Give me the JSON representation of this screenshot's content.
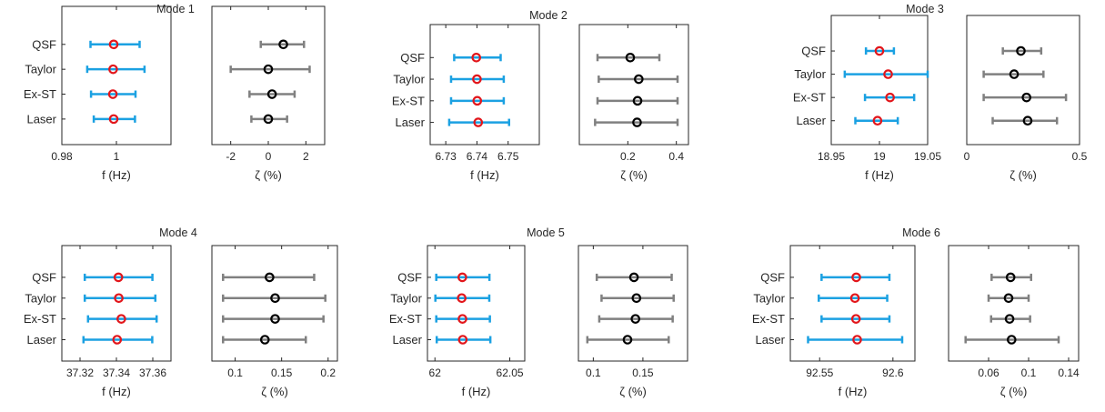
{
  "colors": {
    "freq_bar": "#1ba1e2",
    "freq_marker": "#e2161b",
    "damp_bar": "#808080",
    "damp_marker": "#000000",
    "axes": "#262626"
  },
  "methods": [
    "QSF",
    "Taylor",
    "Ex-ST",
    "Laser"
  ],
  "chart_data": [
    {
      "type": "errorbar",
      "title": "Mode 1",
      "freq": {
        "xlabel": "f (Hz)",
        "xlim": [
          0.98,
          1.02
        ],
        "ticks": [
          0.98,
          1
        ],
        "tick_labels": [
          "0.98",
          "1"
        ],
        "points": [
          {
            "method": "QSF",
            "value": 0.999,
            "lo": 0.9905,
            "hi": 1.0085
          },
          {
            "method": "Taylor",
            "value": 0.9988,
            "lo": 0.9893,
            "hi": 1.0103
          },
          {
            "method": "Ex-ST",
            "value": 0.9987,
            "lo": 0.9907,
            "hi": 1.007
          },
          {
            "method": "Laser",
            "value": 0.999,
            "lo": 0.9917,
            "hi": 1.0068
          }
        ]
      },
      "damp": {
        "xlabel": "ζ (%)",
        "xlim": [
          -3,
          3
        ],
        "ticks": [
          -2,
          0,
          2
        ],
        "tick_labels": [
          "-2",
          "0",
          "2"
        ],
        "points": [
          {
            "method": "QSF",
            "value": 0.8,
            "lo": -0.4,
            "hi": 1.9
          },
          {
            "method": "Taylor",
            "value": 0.0,
            "lo": -2.0,
            "hi": 2.2
          },
          {
            "method": "Ex-ST",
            "value": 0.2,
            "lo": -1.0,
            "hi": 1.4
          },
          {
            "method": "Laser",
            "value": 0.0,
            "lo": -0.9,
            "hi": 1.0
          }
        ]
      }
    },
    {
      "type": "errorbar",
      "title": "Mode 2",
      "freq": {
        "xlabel": "f (Hz)",
        "xlim": [
          6.725,
          6.76
        ],
        "ticks": [
          6.73,
          6.74,
          6.75
        ],
        "tick_labels": [
          "6.73",
          "6.74",
          "6.75"
        ],
        "points": [
          {
            "method": "QSF",
            "value": 6.7398,
            "lo": 6.7327,
            "hi": 6.7476
          },
          {
            "method": "Taylor",
            "value": 6.74,
            "lo": 6.7317,
            "hi": 6.7486
          },
          {
            "method": "Ex-ST",
            "value": 6.7401,
            "lo": 6.7317,
            "hi": 6.7486
          },
          {
            "method": "Laser",
            "value": 6.7404,
            "lo": 6.7311,
            "hi": 6.7503
          }
        ]
      },
      "damp": {
        "xlabel": "ζ (%)",
        "xlim": [
          0,
          0.45
        ],
        "ticks": [
          0.2,
          0.4
        ],
        "tick_labels": [
          "0.2",
          "0.4"
        ],
        "points": [
          {
            "method": "QSF",
            "value": 0.21,
            "lo": 0.075,
            "hi": 0.33
          },
          {
            "method": "Taylor",
            "value": 0.245,
            "lo": 0.08,
            "hi": 0.405
          },
          {
            "method": "Ex-ST",
            "value": 0.24,
            "lo": 0.075,
            "hi": 0.405
          },
          {
            "method": "Laser",
            "value": 0.238,
            "lo": 0.065,
            "hi": 0.405
          }
        ]
      }
    },
    {
      "type": "errorbar",
      "title": "Mode 3",
      "freq": {
        "xlabel": "f (Hz)",
        "xlim": [
          18.95,
          19.05
        ],
        "ticks": [
          18.95,
          19,
          19.05
        ],
        "tick_labels": [
          "18.95",
          "19",
          "19.05"
        ],
        "points": [
          {
            "method": "QSF",
            "value": 19.0,
            "lo": 18.986,
            "hi": 19.015
          },
          {
            "method": "Taylor",
            "value": 19.009,
            "lo": 18.964,
            "hi": 19.05
          },
          {
            "method": "Ex-ST",
            "value": 19.011,
            "lo": 18.985,
            "hi": 19.036
          },
          {
            "method": "Laser",
            "value": 18.998,
            "lo": 18.975,
            "hi": 19.019
          }
        ]
      },
      "damp": {
        "xlabel": "ζ (%)",
        "xlim": [
          0,
          0.5
        ],
        "ticks": [
          0,
          0.5
        ],
        "tick_labels": [
          "0",
          "0.5"
        ],
        "points": [
          {
            "method": "QSF",
            "value": 0.24,
            "lo": 0.16,
            "hi": 0.33
          },
          {
            "method": "Taylor",
            "value": 0.21,
            "lo": 0.075,
            "hi": 0.34
          },
          {
            "method": "Ex-ST",
            "value": 0.265,
            "lo": 0.075,
            "hi": 0.44
          },
          {
            "method": "Laser",
            "value": 0.27,
            "lo": 0.115,
            "hi": 0.4
          }
        ]
      }
    },
    {
      "type": "errorbar",
      "title": "Mode 4",
      "freq": {
        "xlabel": "f (Hz)",
        "xlim": [
          37.31,
          37.37
        ],
        "ticks": [
          37.32,
          37.34,
          37.36
        ],
        "tick_labels": [
          "37.32",
          "37.34",
          "37.36"
        ],
        "points": [
          {
            "method": "QSF",
            "value": 37.3411,
            "lo": 37.3226,
            "hi": 37.3598
          },
          {
            "method": "Taylor",
            "value": 37.3413,
            "lo": 37.3226,
            "hi": 37.3614
          },
          {
            "method": "Ex-ST",
            "value": 37.3427,
            "lo": 37.3244,
            "hi": 37.3621
          },
          {
            "method": "Laser",
            "value": 37.3404,
            "lo": 37.3219,
            "hi": 37.3597
          }
        ]
      },
      "damp": {
        "xlabel": "ζ (%)",
        "xlim": [
          0.075,
          0.21
        ],
        "ticks": [
          0.1,
          0.15,
          0.2
        ],
        "tick_labels": [
          "0.1",
          "0.15",
          "0.2"
        ],
        "points": [
          {
            "method": "QSF",
            "value": 0.137,
            "lo": 0.087,
            "hi": 0.185
          },
          {
            "method": "Taylor",
            "value": 0.143,
            "lo": 0.087,
            "hi": 0.197
          },
          {
            "method": "Ex-ST",
            "value": 0.143,
            "lo": 0.087,
            "hi": 0.195
          },
          {
            "method": "Laser",
            "value": 0.132,
            "lo": 0.087,
            "hi": 0.176
          }
        ]
      }
    },
    {
      "type": "errorbar",
      "title": "Mode 5",
      "freq": {
        "xlabel": "f (Hz)",
        "xlim": [
          61.995,
          62.06
        ],
        "ticks": [
          62,
          62.05
        ],
        "tick_labels": [
          "62",
          "62.05"
        ],
        "points": [
          {
            "method": "QSF",
            "value": 62.0183,
            "lo": 62.0009,
            "hi": 62.0364
          },
          {
            "method": "Taylor",
            "value": 62.0179,
            "lo": 62.0003,
            "hi": 62.0363
          },
          {
            "method": "Ex-ST",
            "value": 62.0184,
            "lo": 62.0009,
            "hi": 62.0367
          },
          {
            "method": "Laser",
            "value": 62.0186,
            "lo": 62.0012,
            "hi": 62.037
          }
        ]
      },
      "damp": {
        "xlabel": "ζ (%)",
        "xlim": [
          0.085,
          0.195
        ],
        "ticks": [
          0.1,
          0.15
        ],
        "tick_labels": [
          "0.1",
          "0.15"
        ],
        "points": [
          {
            "method": "QSF",
            "value": 0.141,
            "lo": 0.1035,
            "hi": 0.179
          },
          {
            "method": "Taylor",
            "value": 0.1435,
            "lo": 0.1083,
            "hi": 0.181
          },
          {
            "method": "Ex-ST",
            "value": 0.1425,
            "lo": 0.106,
            "hi": 0.18
          },
          {
            "method": "Laser",
            "value": 0.1345,
            "lo": 0.094,
            "hi": 0.176
          }
        ]
      }
    },
    {
      "type": "errorbar",
      "title": "Mode 6",
      "freq": {
        "xlabel": "f (Hz)",
        "xlim": [
          92.53,
          92.615
        ],
        "ticks": [
          92.55,
          92.6
        ],
        "tick_labels": [
          "92.55",
          "92.6"
        ],
        "points": [
          {
            "method": "QSF",
            "value": 92.575,
            "lo": 92.5513,
            "hi": 92.5976
          },
          {
            "method": "Taylor",
            "value": 92.5741,
            "lo": 92.5494,
            "hi": 92.5961
          },
          {
            "method": "Ex-ST",
            "value": 92.5748,
            "lo": 92.5513,
            "hi": 92.5976
          },
          {
            "method": "Laser",
            "value": 92.5756,
            "lo": 92.5421,
            "hi": 92.6063
          }
        ]
      },
      "damp": {
        "xlabel": "ζ (%)",
        "xlim": [
          0.02,
          0.15
        ],
        "ticks": [
          0.06,
          0.1,
          0.14
        ],
        "tick_labels": [
          "0.06",
          "0.1",
          "0.14"
        ],
        "points": [
          {
            "method": "QSF",
            "value": 0.082,
            "lo": 0.063,
            "hi": 0.1025
          },
          {
            "method": "Taylor",
            "value": 0.08,
            "lo": 0.06,
            "hi": 0.1
          },
          {
            "method": "Ex-ST",
            "value": 0.081,
            "lo": 0.0625,
            "hi": 0.1015
          },
          {
            "method": "Laser",
            "value": 0.083,
            "lo": 0.037,
            "hi": 0.13
          }
        ]
      }
    }
  ]
}
